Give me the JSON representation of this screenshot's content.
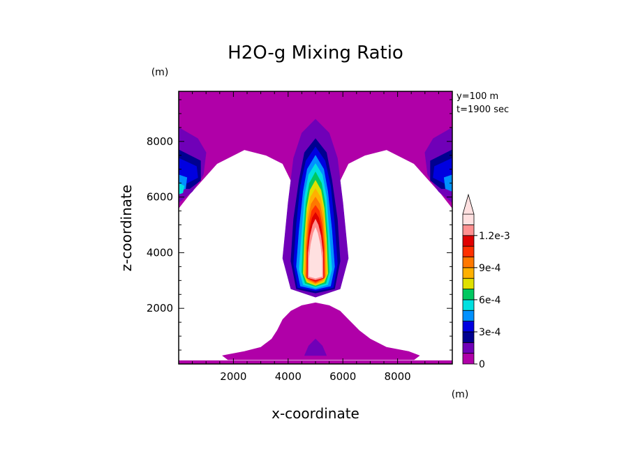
{
  "chart_data": {
    "type": "heatmap",
    "title": "H2O-g Mixing Ratio",
    "xlabel": "x-coordinate",
    "ylabel": "z-coordinate",
    "x_unit": "(m)",
    "y_unit": "(m)",
    "annotations": [
      "y=100 m",
      "t=1900 sec"
    ],
    "xlim": [
      0,
      10000
    ],
    "ylim": [
      0,
      9800
    ],
    "x_ticks": [
      2000,
      4000,
      6000,
      8000
    ],
    "y_ticks": [
      2000,
      4000,
      6000,
      8000
    ],
    "x_tick_labels": [
      "2000",
      "4000",
      "6000",
      "8000"
    ],
    "y_tick_labels": [
      "2000",
      "4000",
      "6000",
      "8000"
    ],
    "colorbar": {
      "levels": [
        0,
        0.0001,
        0.0002,
        0.0003,
        0.0004,
        0.0005,
        0.0006,
        0.0007,
        0.0008,
        0.0009,
        0.001,
        0.0011,
        0.0012,
        0.0013
      ],
      "colors": [
        "#b000a8",
        "#7000b8",
        "#000090",
        "#0000e0",
        "#0090ff",
        "#00e0e0",
        "#00c860",
        "#e0e000",
        "#ffb000",
        "#ff7800",
        "#ff3000",
        "#e00000",
        "#ff9090",
        "#ffe0e0"
      ],
      "tick_labels": [
        {
          "value": 0,
          "label": "0"
        },
        {
          "value": 0.0003,
          "label": "3e-4"
        },
        {
          "value": 0.0006,
          "label": "6e-4"
        },
        {
          "value": 0.0009,
          "label": "9e-4"
        },
        {
          "value": 0.0012,
          "label": "1.2e-3"
        }
      ],
      "extend": "max"
    },
    "regions": [
      {
        "level": 0,
        "polygon": [
          [
            0,
            9800
          ],
          [
            10000,
            9800
          ],
          [
            10000,
            5600
          ],
          [
            9600,
            6100
          ],
          [
            8600,
            7200
          ],
          [
            7600,
            7700
          ],
          [
            6800,
            7500
          ],
          [
            6200,
            7200
          ],
          [
            5900,
            6600
          ],
          [
            5500,
            6000
          ],
          [
            5200,
            5000
          ],
          [
            5000,
            4200
          ],
          [
            4700,
            5000
          ],
          [
            4400,
            6000
          ],
          [
            4100,
            6600
          ],
          [
            3800,
            7200
          ],
          [
            3200,
            7500
          ],
          [
            2400,
            7700
          ],
          [
            1400,
            7200
          ],
          [
            400,
            6100
          ],
          [
            0,
            5600
          ]
        ]
      },
      {
        "level": 0,
        "polygon": [
          [
            0,
            120
          ],
          [
            10000,
            120
          ],
          [
            10000,
            0
          ],
          [
            0,
            0
          ]
        ]
      },
      {
        "level": 0,
        "polygon": [
          [
            1600,
            300
          ],
          [
            2400,
            450
          ],
          [
            3000,
            600
          ],
          [
            3400,
            900
          ],
          [
            3600,
            1200
          ],
          [
            3800,
            1600
          ],
          [
            4100,
            1900
          ],
          [
            4500,
            2100
          ],
          [
            5000,
            2200
          ],
          [
            5500,
            2100
          ],
          [
            5900,
            1900
          ],
          [
            6200,
            1600
          ],
          [
            6600,
            1200
          ],
          [
            7000,
            900
          ],
          [
            7600,
            600
          ],
          [
            8400,
            450
          ],
          [
            8800,
            300
          ],
          [
            8600,
            150
          ],
          [
            1800,
            150
          ]
        ]
      },
      {
        "level": 0.0001,
        "polygon": [
          [
            5000,
            900
          ],
          [
            4750,
            650
          ],
          [
            4600,
            300
          ],
          [
            5400,
            300
          ],
          [
            5250,
            650
          ]
        ]
      },
      {
        "level": 0.0001,
        "polygon": [
          [
            0,
            8500
          ],
          [
            700,
            8100
          ],
          [
            1000,
            7600
          ],
          [
            900,
            6800
          ],
          [
            500,
            6200
          ],
          [
            0,
            5800
          ]
        ]
      },
      {
        "level": 0.0001,
        "polygon": [
          [
            10000,
            8500
          ],
          [
            9300,
            8100
          ],
          [
            9000,
            7600
          ],
          [
            9100,
            6800
          ],
          [
            9500,
            6200
          ],
          [
            10000,
            5800
          ]
        ]
      },
      {
        "level": 0.0001,
        "polygon": [
          [
            5000,
            8800
          ],
          [
            5500,
            8300
          ],
          [
            5800,
            7400
          ],
          [
            6000,
            5800
          ],
          [
            6200,
            3800
          ],
          [
            5900,
            2700
          ],
          [
            5000,
            2400
          ],
          [
            4100,
            2700
          ],
          [
            3800,
            3800
          ],
          [
            4000,
            5800
          ],
          [
            4200,
            7400
          ],
          [
            4500,
            8300
          ]
        ]
      },
      {
        "level": 0.0002,
        "polygon": [
          [
            0,
            7700
          ],
          [
            800,
            7300
          ],
          [
            800,
            6600
          ],
          [
            400,
            6300
          ],
          [
            0,
            6300
          ]
        ]
      },
      {
        "level": 0.0002,
        "polygon": [
          [
            10000,
            7700
          ],
          [
            9200,
            7300
          ],
          [
            9200,
            6600
          ],
          [
            9600,
            6300
          ],
          [
            10000,
            6300
          ]
        ]
      },
      {
        "level": 0.0002,
        "polygon": [
          [
            5000,
            8100
          ],
          [
            5400,
            7600
          ],
          [
            5600,
            6600
          ],
          [
            5800,
            5200
          ],
          [
            5900,
            3700
          ],
          [
            5700,
            2700
          ],
          [
            5000,
            2550
          ],
          [
            4300,
            2700
          ],
          [
            4100,
            3700
          ],
          [
            4200,
            5200
          ],
          [
            4400,
            6600
          ],
          [
            4600,
            7600
          ]
        ]
      },
      {
        "level": 0.0003,
        "polygon": [
          [
            0,
            7400
          ],
          [
            650,
            7100
          ],
          [
            700,
            6700
          ],
          [
            300,
            6500
          ],
          [
            0,
            6500
          ]
        ]
      },
      {
        "level": 0.0003,
        "polygon": [
          [
            10000,
            7400
          ],
          [
            9350,
            7100
          ],
          [
            9300,
            6700
          ],
          [
            9700,
            6500
          ],
          [
            10000,
            6500
          ]
        ]
      },
      {
        "level": 0.0003,
        "polygon": [
          [
            5000,
            7800
          ],
          [
            5350,
            7300
          ],
          [
            5550,
            6400
          ],
          [
            5700,
            5000
          ],
          [
            5800,
            3600
          ],
          [
            5650,
            2750
          ],
          [
            5000,
            2620
          ],
          [
            4350,
            2750
          ],
          [
            4200,
            3600
          ],
          [
            4300,
            5000
          ],
          [
            4450,
            6400
          ],
          [
            4650,
            7300
          ]
        ]
      },
      {
        "level": 0.0004,
        "polygon": [
          [
            0,
            6800
          ],
          [
            300,
            6700
          ],
          [
            250,
            6300
          ],
          [
            0,
            6200
          ]
        ]
      },
      {
        "level": 0.0004,
        "polygon": [
          [
            10000,
            6800
          ],
          [
            9700,
            6700
          ],
          [
            9750,
            6300
          ],
          [
            10000,
            6200
          ]
        ]
      },
      {
        "level": 0.0004,
        "polygon": [
          [
            5000,
            7500
          ],
          [
            5300,
            7000
          ],
          [
            5450,
            6200
          ],
          [
            5600,
            4800
          ],
          [
            5700,
            3500
          ],
          [
            5550,
            2800
          ],
          [
            5000,
            2680
          ],
          [
            4450,
            2800
          ],
          [
            4300,
            3500
          ],
          [
            4400,
            4800
          ],
          [
            4550,
            6200
          ],
          [
            4700,
            7000
          ]
        ]
      },
      {
        "level": 0.0005,
        "polygon": [
          [
            0,
            6500
          ],
          [
            200,
            6400
          ],
          [
            150,
            6150
          ],
          [
            0,
            6100
          ]
        ]
      },
      {
        "level": 0.0005,
        "polygon": [
          [
            5000,
            7200
          ],
          [
            5250,
            6800
          ],
          [
            5400,
            6000
          ],
          [
            5500,
            4700
          ],
          [
            5600,
            3400
          ],
          [
            5450,
            2850
          ],
          [
            5000,
            2730
          ],
          [
            4550,
            2850
          ],
          [
            4400,
            3400
          ],
          [
            4500,
            4700
          ],
          [
            4600,
            6000
          ],
          [
            4750,
            6800
          ]
        ]
      },
      {
        "level": 0.0006,
        "polygon": [
          [
            5000,
            6900
          ],
          [
            5220,
            6500
          ],
          [
            5350,
            5800
          ],
          [
            5450,
            4600
          ],
          [
            5500,
            3300
          ],
          [
            5380,
            2900
          ],
          [
            5000,
            2780
          ],
          [
            4620,
            2900
          ],
          [
            4500,
            3300
          ],
          [
            4550,
            4600
          ],
          [
            4650,
            5800
          ],
          [
            4780,
            6500
          ]
        ]
      },
      {
        "level": 0.0007,
        "polygon": [
          [
            5000,
            6600
          ],
          [
            5200,
            6250
          ],
          [
            5320,
            5600
          ],
          [
            5400,
            4500
          ],
          [
            5450,
            3250
          ],
          [
            5320,
            2940
          ],
          [
            5000,
            2820
          ],
          [
            4680,
            2940
          ],
          [
            4550,
            3250
          ],
          [
            4600,
            4500
          ],
          [
            4680,
            5600
          ],
          [
            4800,
            6250
          ]
        ]
      },
      {
        "level": 0.0008,
        "polygon": [
          [
            5000,
            6300
          ],
          [
            5180,
            6000
          ],
          [
            5300,
            5400
          ],
          [
            5370,
            4400
          ],
          [
            5400,
            3200
          ],
          [
            5280,
            2980
          ],
          [
            5000,
            2860
          ],
          [
            4720,
            2980
          ],
          [
            4600,
            3200
          ],
          [
            4630,
            4400
          ],
          [
            4700,
            5400
          ],
          [
            4820,
            6000
          ]
        ]
      },
      {
        "level": 0.0009,
        "polygon": [
          [
            5000,
            6000
          ],
          [
            5160,
            5750
          ],
          [
            5270,
            5200
          ],
          [
            5340,
            4300
          ],
          [
            5360,
            3150
          ],
          [
            5240,
            3010
          ],
          [
            5000,
            2900
          ],
          [
            4760,
            3010
          ],
          [
            4640,
            3150
          ],
          [
            4660,
            4300
          ],
          [
            4730,
            5200
          ],
          [
            4840,
            5750
          ]
        ]
      },
      {
        "level": 0.001,
        "polygon": [
          [
            5000,
            5700
          ],
          [
            5140,
            5500
          ],
          [
            5240,
            5000
          ],
          [
            5310,
            4200
          ],
          [
            5330,
            3100
          ],
          [
            5200,
            3030
          ],
          [
            5000,
            2940
          ],
          [
            4800,
            3030
          ],
          [
            4670,
            3100
          ],
          [
            4690,
            4200
          ],
          [
            4760,
            5000
          ],
          [
            4860,
            5500
          ]
        ]
      },
      {
        "level": 0.0011,
        "polygon": [
          [
            5000,
            5450
          ],
          [
            5120,
            5250
          ],
          [
            5220,
            4800
          ],
          [
            5290,
            4100
          ],
          [
            5300,
            3080
          ],
          [
            5160,
            3050
          ],
          [
            5000,
            2980
          ],
          [
            4840,
            3050
          ],
          [
            4700,
            3080
          ],
          [
            4710,
            4100
          ],
          [
            4780,
            4800
          ],
          [
            4880,
            5250
          ]
        ]
      },
      {
        "level": 0.0012,
        "polygon": [
          [
            5000,
            5200
          ],
          [
            5100,
            5000
          ],
          [
            5200,
            4600
          ],
          [
            5270,
            4000
          ],
          [
            5280,
            3100
          ],
          [
            5000,
            3020
          ],
          [
            4720,
            3100
          ],
          [
            4730,
            4000
          ],
          [
            4800,
            4600
          ],
          [
            4900,
            5000
          ]
        ]
      },
      {
        "level": 0.0013,
        "polygon": [
          [
            5000,
            4900
          ],
          [
            5080,
            4700
          ],
          [
            5170,
            4300
          ],
          [
            5230,
            3800
          ],
          [
            5240,
            3150
          ],
          [
            5000,
            3080
          ],
          [
            4760,
            3150
          ],
          [
            4770,
            3800
          ],
          [
            4830,
            4300
          ],
          [
            4920,
            4700
          ]
        ]
      }
    ]
  }
}
